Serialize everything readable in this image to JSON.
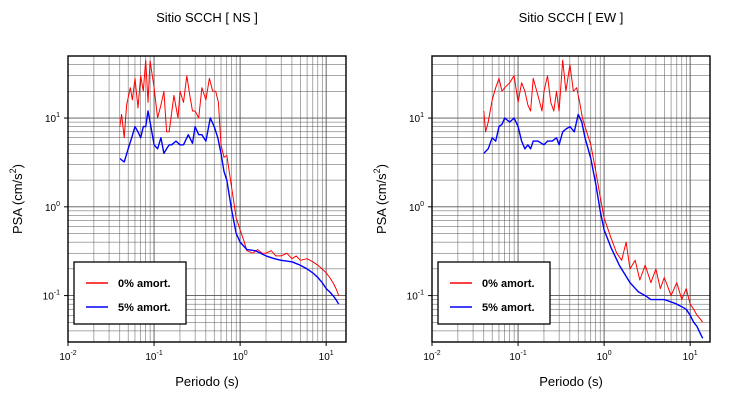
{
  "chart_data": [
    {
      "type": "line",
      "title": "Sitio SCCH [ NS ]",
      "xlabel": "Periodo (s)",
      "ylabel_main": "PSA (cm/s",
      "ylabel_sup": "2",
      "ylabel_close": ")",
      "xscale": "log",
      "yscale": "log",
      "xlim": [
        0.01,
        17
      ],
      "ylim": [
        0.03,
        50
      ],
      "grid": true,
      "legend_position": "bottom-left",
      "x_ticks": [
        {
          "value": 0.01,
          "base": "10",
          "exp": "-2"
        },
        {
          "value": 0.1,
          "base": "10",
          "exp": "-1"
        },
        {
          "value": 1,
          "base": "10",
          "exp": "0"
        },
        {
          "value": 10,
          "base": "10",
          "exp": "1"
        }
      ],
      "y_ticks": [
        {
          "value": 0.1,
          "base": "10",
          "exp": "-1"
        },
        {
          "value": 1,
          "base": "10",
          "exp": "0"
        },
        {
          "value": 10,
          "base": "10",
          "exp": "1"
        }
      ],
      "series": [
        {
          "name": "0% amort.",
          "color": "#ff0000",
          "x": [
            0.04,
            0.042,
            0.045,
            0.048,
            0.05,
            0.053,
            0.056,
            0.06,
            0.065,
            0.07,
            0.075,
            0.08,
            0.085,
            0.09,
            0.1,
            0.11,
            0.12,
            0.13,
            0.14,
            0.15,
            0.17,
            0.19,
            0.2,
            0.22,
            0.24,
            0.26,
            0.28,
            0.3,
            0.33,
            0.36,
            0.4,
            0.44,
            0.48,
            0.52,
            0.56,
            0.6,
            0.65,
            0.7,
            0.8,
            0.9,
            1.0,
            1.1,
            1.2,
            1.4,
            1.6,
            1.8,
            2.0,
            2.3,
            2.6,
            3.0,
            3.5,
            4.0,
            4.5,
            5.0,
            6.0,
            7.0,
            8.0,
            9.0,
            10.0,
            11.0,
            12.0,
            13.0,
            14.0
          ],
          "values": [
            8,
            11,
            6,
            14,
            17,
            22,
            16,
            28,
            13,
            30,
            20,
            45,
            15,
            44,
            22,
            10,
            14,
            20,
            7,
            7,
            18,
            10,
            20,
            15,
            30,
            18,
            12,
            12,
            10,
            22,
            16,
            28,
            20,
            20,
            15,
            5,
            3.6,
            3.8,
            1.6,
            0.75,
            0.55,
            0.42,
            0.32,
            0.3,
            0.33,
            0.3,
            0.3,
            0.32,
            0.28,
            0.28,
            0.3,
            0.26,
            0.28,
            0.25,
            0.26,
            0.24,
            0.22,
            0.2,
            0.18,
            0.16,
            0.14,
            0.12,
            0.1
          ]
        },
        {
          "name": "5% amort.",
          "color": "#0000ff",
          "x": [
            0.04,
            0.045,
            0.05,
            0.055,
            0.06,
            0.065,
            0.07,
            0.075,
            0.08,
            0.085,
            0.09,
            0.1,
            0.11,
            0.12,
            0.13,
            0.14,
            0.15,
            0.16,
            0.18,
            0.2,
            0.22,
            0.25,
            0.28,
            0.3,
            0.33,
            0.36,
            0.4,
            0.45,
            0.5,
            0.55,
            0.6,
            0.65,
            0.7,
            0.8,
            0.9,
            1.0,
            1.2,
            1.5,
            2.0,
            2.5,
            3.0,
            4.0,
            5.0,
            6.0,
            7.0,
            8.0,
            9.0,
            10.0,
            11.0,
            12.0,
            13.0,
            14.0
          ],
          "values": [
            3.5,
            3.2,
            4.5,
            6,
            8,
            7,
            6,
            8,
            8,
            12,
            9,
            5,
            4.5,
            6,
            4,
            4.5,
            5,
            5,
            5.5,
            5,
            5,
            6.5,
            5.2,
            8,
            6.5,
            6.5,
            5.5,
            10,
            8,
            6,
            4,
            2.5,
            2,
            0.9,
            0.5,
            0.4,
            0.33,
            0.32,
            0.28,
            0.26,
            0.25,
            0.24,
            0.22,
            0.2,
            0.18,
            0.16,
            0.14,
            0.12,
            0.11,
            0.1,
            0.09,
            0.08
          ]
        }
      ]
    },
    {
      "type": "line",
      "title": "Sitio SCCH [ EW ]",
      "xlabel": "Periodo (s)",
      "ylabel_main": "PSA (cm/s",
      "ylabel_sup": "2",
      "ylabel_close": ")",
      "xscale": "log",
      "yscale": "log",
      "xlim": [
        0.01,
        17
      ],
      "ylim": [
        0.03,
        50
      ],
      "grid": true,
      "legend_position": "bottom-left",
      "x_ticks": [
        {
          "value": 0.01,
          "base": "10",
          "exp": "-2"
        },
        {
          "value": 0.1,
          "base": "10",
          "exp": "-1"
        },
        {
          "value": 1,
          "base": "10",
          "exp": "0"
        },
        {
          "value": 10,
          "base": "10",
          "exp": "1"
        }
      ],
      "y_ticks": [
        {
          "value": 0.1,
          "base": "10",
          "exp": "-1"
        },
        {
          "value": 1,
          "base": "10",
          "exp": "0"
        },
        {
          "value": 10,
          "base": "10",
          "exp": "1"
        }
      ],
      "series": [
        {
          "name": "0% amort.",
          "color": "#ff0000",
          "x": [
            0.04,
            0.042,
            0.045,
            0.05,
            0.055,
            0.06,
            0.065,
            0.07,
            0.08,
            0.09,
            0.1,
            0.11,
            0.12,
            0.13,
            0.14,
            0.15,
            0.17,
            0.19,
            0.2,
            0.22,
            0.24,
            0.26,
            0.28,
            0.3,
            0.33,
            0.36,
            0.4,
            0.44,
            0.48,
            0.52,
            0.56,
            0.6,
            0.7,
            0.8,
            0.9,
            1.0,
            1.2,
            1.4,
            1.6,
            1.8,
            2.0,
            2.3,
            2.6,
            3.0,
            3.5,
            4.0,
            4.5,
            5.0,
            6.0,
            7.0,
            8.0,
            9.0,
            10.0,
            11.0,
            12.0,
            13.0,
            14.0
          ],
          "values": [
            12,
            7,
            9,
            16,
            22,
            28,
            20,
            22,
            25,
            30,
            15,
            25,
            20,
            14,
            12,
            28,
            18,
            12,
            20,
            30,
            15,
            12,
            20,
            12,
            45,
            20,
            40,
            20,
            22,
            15,
            10,
            8,
            5,
            2.5,
            1.3,
            0.75,
            0.45,
            0.3,
            0.25,
            0.4,
            0.2,
            0.25,
            0.15,
            0.22,
            0.14,
            0.2,
            0.12,
            0.16,
            0.1,
            0.14,
            0.09,
            0.12,
            0.08,
            0.07,
            0.06,
            0.055,
            0.05
          ]
        },
        {
          "name": "5% amort.",
          "color": "#0000ff",
          "x": [
            0.04,
            0.045,
            0.05,
            0.055,
            0.06,
            0.065,
            0.07,
            0.08,
            0.09,
            0.1,
            0.11,
            0.12,
            0.13,
            0.14,
            0.15,
            0.17,
            0.2,
            0.22,
            0.25,
            0.28,
            0.3,
            0.33,
            0.36,
            0.4,
            0.45,
            0.5,
            0.55,
            0.6,
            0.7,
            0.8,
            0.9,
            1.0,
            1.2,
            1.5,
            2.0,
            2.5,
            3.0,
            3.5,
            4.0,
            5.0,
            6.0,
            7.0,
            8.0,
            9.0,
            10.0,
            11.0,
            12.0,
            13.0,
            14.0
          ],
          "values": [
            4,
            4.5,
            6,
            5.5,
            8,
            8.5,
            10,
            9,
            10,
            8,
            5.5,
            4.5,
            5,
            4.5,
            5.5,
            5.5,
            5,
            5.5,
            5.5,
            6,
            5,
            7,
            7.5,
            8,
            7,
            11,
            9,
            6,
            3.5,
            1.8,
            0.9,
            0.55,
            0.35,
            0.22,
            0.14,
            0.11,
            0.1,
            0.09,
            0.09,
            0.09,
            0.085,
            0.08,
            0.075,
            0.07,
            0.06,
            0.05,
            0.045,
            0.038,
            0.033
          ]
        }
      ]
    }
  ]
}
